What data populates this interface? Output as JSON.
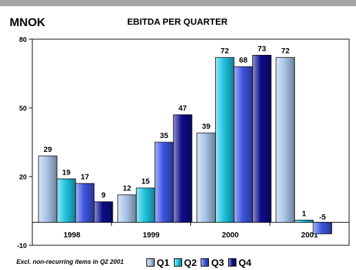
{
  "header": {
    "unit_label": "MNOK",
    "title": "EBITDA PER QUARTER"
  },
  "footnote": "Excl. non-recurring items in Q2 2001",
  "colors": {
    "Q1": "#a9c4e8",
    "Q2": "#1fc4e0",
    "Q3": "#3d55e0",
    "Q4": "#0c0c8c"
  },
  "chart_data": {
    "type": "bar",
    "title": "EBITDA PER QUARTER",
    "ylabel": "MNOK",
    "categories": [
      "1998",
      "1999",
      "2000",
      "2001"
    ],
    "series": [
      {
        "name": "Q1",
        "values": [
          29,
          12,
          39,
          72
        ]
      },
      {
        "name": "Q2",
        "values": [
          19,
          15,
          72,
          1
        ]
      },
      {
        "name": "Q3",
        "values": [
          17,
          35,
          68,
          -5
        ]
      },
      {
        "name": "Q4",
        "values": [
          9,
          47,
          73,
          null
        ]
      }
    ],
    "yticks": [
      -10,
      20,
      50,
      80
    ],
    "ylim": [
      -10,
      80
    ],
    "grid": false,
    "legend_position": "bottom"
  }
}
